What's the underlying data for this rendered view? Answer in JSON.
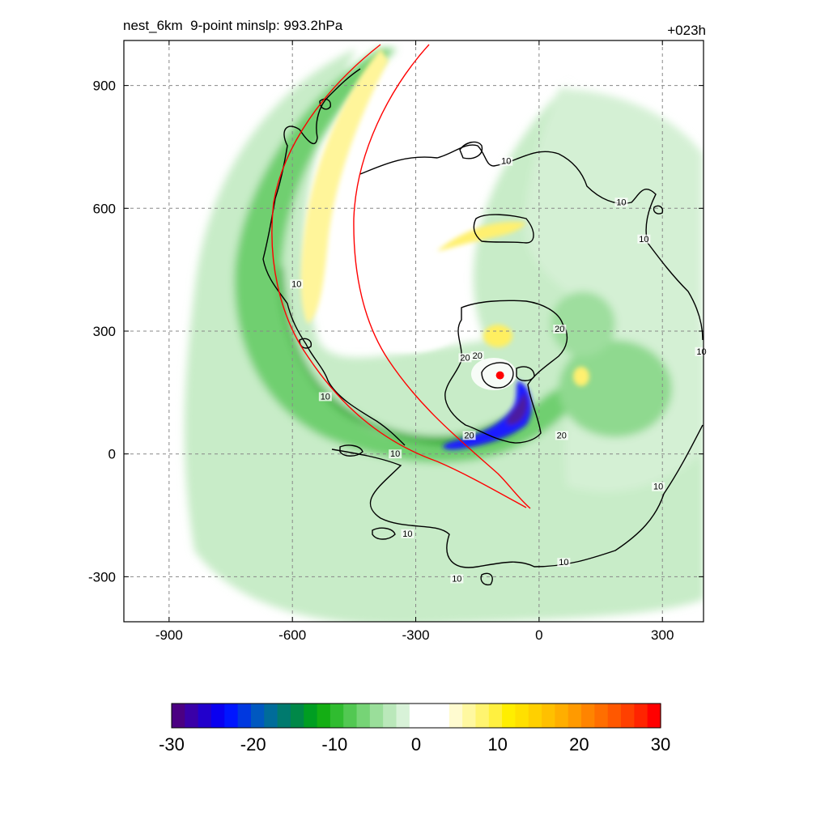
{
  "header": {
    "left_title": "nest_6km  9-point minslp: 993.2hPa",
    "right_title": "+023h"
  },
  "chart_data": {
    "type": "heatmap",
    "title": "nest_6km  9-point minslp: 993.2hPa",
    "forecast_hour": "+023h",
    "xlim": [
      -1010,
      400
    ],
    "ylim": [
      -410,
      1010
    ],
    "x_ticks": [
      -900,
      -600,
      -300,
      0,
      300
    ],
    "y_ticks": [
      -300,
      0,
      300,
      600,
      900
    ],
    "grid": true,
    "colorbar": {
      "range": [
        -30,
        30
      ],
      "ticks": [
        -30,
        -20,
        -10,
        0,
        10,
        20,
        30
      ],
      "colors": [
        "#4b0082",
        "#3a00a8",
        "#2200cc",
        "#0a00f0",
        "#0016ff",
        "#0038e0",
        "#0058c0",
        "#006c9a",
        "#007a6e",
        "#008848",
        "#009e22",
        "#14ae14",
        "#30bc30",
        "#52c852",
        "#76d476",
        "#9ade9a",
        "#bae8ba",
        "#d8f2d8",
        "#ffffff",
        "#ffffff",
        "#ffffff",
        "#fffbd0",
        "#fff8a0",
        "#fff470",
        "#fff040",
        "#ffee00",
        "#ffe000",
        "#ffd000",
        "#ffc000",
        "#ffae00",
        "#ff9a00",
        "#ff8400",
        "#ff6e00",
        "#ff5800",
        "#ff4000",
        "#ff2400",
        "#ff0000"
      ]
    },
    "contours": [
      {
        "level": 10,
        "labels": [
          {
            "text": "10",
            "x": -80,
            "y": 710
          },
          {
            "text": "10",
            "x": 200,
            "y": 610
          },
          {
            "text": "10",
            "x": 255,
            "y": 520
          },
          {
            "text": "10",
            "x": -590,
            "y": 410
          },
          {
            "text": "10",
            "x": -520,
            "y": 135
          },
          {
            "text": "10",
            "x": -350,
            "y": -5
          },
          {
            "text": "10",
            "x": 395,
            "y": 245
          },
          {
            "text": "10",
            "x": 290,
            "y": -85
          },
          {
            "text": "10",
            "x": 60,
            "y": -270
          },
          {
            "text": "10",
            "x": -320,
            "y": -200
          },
          {
            "text": "10",
            "x": -200,
            "y": -310
          }
        ]
      },
      {
        "level": 20,
        "labels": [
          {
            "text": "20",
            "x": 50,
            "y": 300
          },
          {
            "text": "20",
            "x": -180,
            "y": 230
          },
          {
            "text": "20",
            "x": -150,
            "y": 235
          },
          {
            "text": "20",
            "x": -170,
            "y": 40
          },
          {
            "text": "20",
            "x": 55,
            "y": 40
          }
        ]
      }
    ],
    "storm_center": {
      "x": -95,
      "y": 192,
      "color": "#ff0000"
    }
  }
}
